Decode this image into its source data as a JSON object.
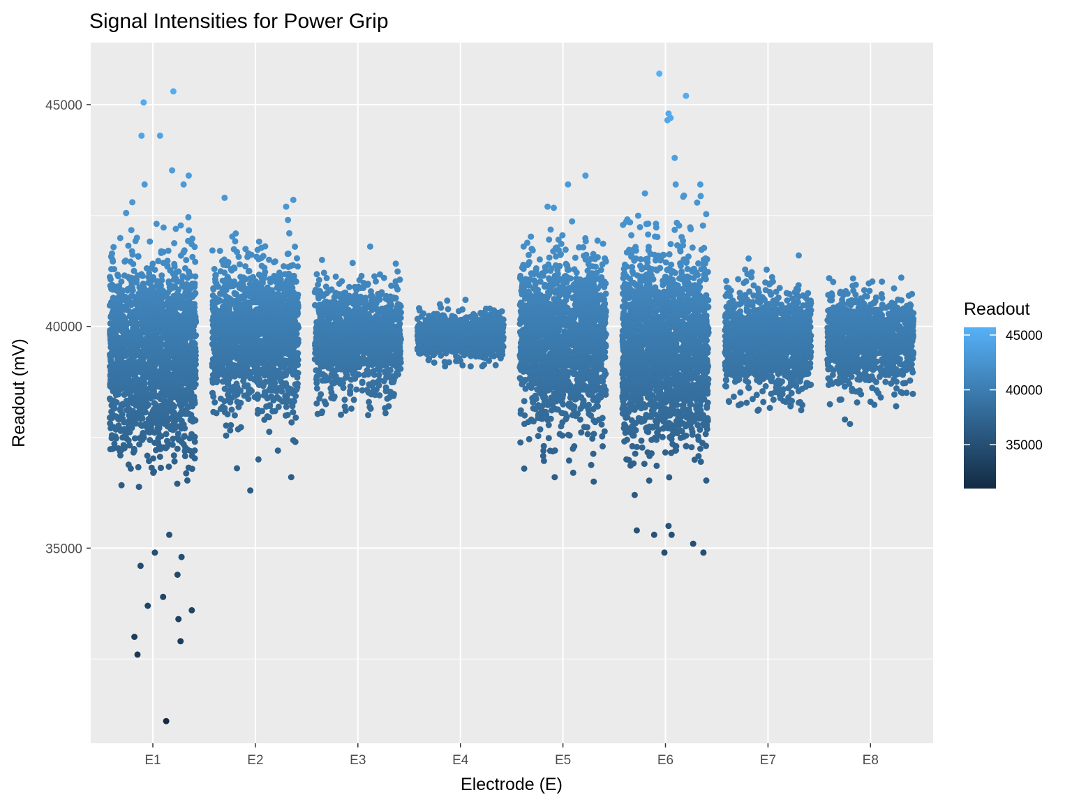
{
  "chart_data": {
    "type": "scatter",
    "title": "Signal Intensities for Power Grip",
    "xlabel": "Electrode (E)",
    "ylabel": "Readout (mV)",
    "categories": [
      "E1",
      "E2",
      "E3",
      "E4",
      "E5",
      "E6",
      "E7",
      "E8"
    ],
    "ylim": [
      30600,
      46400
    ],
    "y_ticks": [
      35000,
      40000,
      45000
    ],
    "grid": true,
    "legend": {
      "title": "Readout",
      "position": "right",
      "range": [
        31000,
        45700
      ],
      "ticks": [
        35000,
        40000,
        45000
      ],
      "color_low": "#132b43",
      "color_high": "#56b1f7"
    },
    "jitter_width": 0.42,
    "groups": [
      {
        "category": "E1",
        "mean": 39400,
        "sd": 1050,
        "min": 31100,
        "max": 45300,
        "n": 1900,
        "outliers": [
          [
            -0.15,
            32600
          ],
          [
            -0.05,
            33700
          ],
          [
            0.1,
            33900
          ],
          [
            0.25,
            33400
          ],
          [
            0.38,
            33600
          ],
          [
            0.27,
            32900
          ],
          [
            -0.12,
            34600
          ],
          [
            0.02,
            34900
          ],
          [
            0.16,
            35300
          ],
          [
            0.28,
            34800
          ],
          [
            0.24,
            34400
          ],
          [
            0.13,
            31100
          ],
          [
            -0.18,
            33000
          ],
          [
            -0.2,
            42800
          ],
          [
            -0.08,
            43200
          ],
          [
            -0.11,
            44300
          ],
          [
            0.07,
            44300
          ],
          [
            -0.09,
            45050
          ],
          [
            0.2,
            45300
          ],
          [
            0.35,
            43400
          ],
          [
            0.3,
            43200
          ]
        ]
      },
      {
        "category": "E2",
        "mean": 39800,
        "sd": 800,
        "min": 36300,
        "max": 42900,
        "n": 1500,
        "outliers": [
          [
            -0.18,
            36800
          ],
          [
            -0.05,
            36300
          ],
          [
            0.03,
            37000
          ],
          [
            0.22,
            37200
          ],
          [
            0.35,
            36600
          ],
          [
            -0.3,
            42900
          ],
          [
            0.3,
            42700
          ]
        ]
      },
      {
        "category": "E3",
        "mean": 39750,
        "sd": 560,
        "min": 38000,
        "max": 41800,
        "n": 1200,
        "outliers": [
          [
            -0.12,
            38100
          ],
          [
            0.1,
            38000
          ],
          [
            0.3,
            38200
          ],
          [
            0.12,
            41800
          ],
          [
            -0.35,
            41500
          ]
        ]
      },
      {
        "category": "E4",
        "mean": 39800,
        "sd": 230,
        "min": 39100,
        "max": 40600,
        "n": 1000,
        "outliers": [
          [
            -0.15,
            39100
          ],
          [
            0.1,
            39100
          ],
          [
            -0.2,
            40500
          ],
          [
            0.05,
            40600
          ],
          [
            0.25,
            40400
          ]
        ]
      },
      {
        "category": "E5",
        "mean": 39700,
        "sd": 900,
        "min": 36500,
        "max": 43400,
        "n": 1700,
        "outliers": [
          [
            -0.08,
            36600
          ],
          [
            0.1,
            36700
          ],
          [
            0.3,
            36500
          ],
          [
            0.22,
            43400
          ],
          [
            0.05,
            43200
          ],
          [
            -0.15,
            42700
          ]
        ]
      },
      {
        "category": "E6",
        "mean": 39600,
        "sd": 1050,
        "min": 34900,
        "max": 45700,
        "n": 1900,
        "outliers": [
          [
            -0.3,
            36200
          ],
          [
            -0.28,
            35400
          ],
          [
            -0.11,
            35300
          ],
          [
            -0.01,
            34900
          ],
          [
            0.06,
            35300
          ],
          [
            0.03,
            35500
          ],
          [
            0.27,
            35100
          ],
          [
            0.37,
            34900
          ],
          [
            -0.06,
            45700
          ],
          [
            0.2,
            45200
          ],
          [
            0.03,
            44800
          ],
          [
            0.02,
            44650
          ],
          [
            0.05,
            44700
          ],
          [
            0.09,
            43800
          ],
          [
            0.1,
            43200
          ],
          [
            0.34,
            43200
          ],
          [
            -0.2,
            43000
          ]
        ]
      },
      {
        "category": "E7",
        "mean": 39700,
        "sd": 560,
        "min": 38100,
        "max": 41600,
        "n": 1200,
        "outliers": [
          [
            -0.38,
            38300
          ],
          [
            -0.1,
            38100
          ],
          [
            0.22,
            38200
          ],
          [
            0.3,
            41600
          ]
        ]
      },
      {
        "category": "E8",
        "mean": 39700,
        "sd": 500,
        "min": 37800,
        "max": 41100,
        "n": 1100,
        "outliers": [
          [
            -0.25,
            37900
          ],
          [
            -0.2,
            37800
          ],
          [
            0.0,
            38300
          ],
          [
            0.1,
            38400
          ],
          [
            0.25,
            38200
          ],
          [
            0.3,
            41100
          ]
        ]
      }
    ]
  }
}
